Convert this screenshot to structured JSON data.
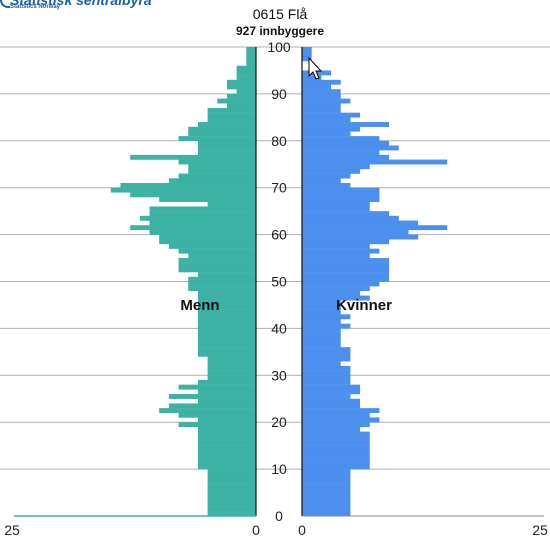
{
  "logo": {
    "name": "Statistisk sentralbyrå",
    "sub": "Statistics Norway"
  },
  "chart_data": {
    "type": "bar",
    "title": "0615 Flå",
    "subtitle": "927 innbyggere",
    "ylim": [
      0,
      100
    ],
    "yticks": [
      0,
      10,
      20,
      30,
      40,
      50,
      60,
      70,
      80,
      90,
      100
    ],
    "xlim": [
      0,
      25
    ],
    "xtick_labels": [
      "25",
      "0",
      "0",
      "25"
    ],
    "grid": true,
    "series": [
      {
        "name": "Menn",
        "color": "#3cb2a4",
        "values": [
          5,
          5,
          5,
          5,
          5,
          5,
          5,
          5,
          5,
          5,
          6,
          6,
          6,
          6,
          6,
          6,
          6,
          6,
          6,
          8,
          6,
          8,
          10,
          9,
          6,
          9,
          6,
          8,
          6,
          5,
          5,
          5,
          5,
          5,
          6,
          6,
          6,
          6,
          6,
          6,
          6,
          6,
          6,
          6,
          6,
          6,
          6,
          6,
          7,
          7,
          7,
          6,
          8,
          8,
          8,
          7,
          8,
          9,
          10,
          10,
          11,
          13,
          11,
          12,
          11,
          11,
          5,
          10,
          13,
          15,
          14,
          9,
          8,
          7,
          7,
          8,
          13,
          6,
          6,
          6,
          8,
          7,
          7,
          6,
          5,
          5,
          5,
          3,
          4,
          3,
          2,
          3,
          3,
          2,
          2,
          2,
          1,
          1,
          1,
          1,
          0
        ]
      },
      {
        "name": "Kvinner",
        "color": "#4b8fef",
        "values": [
          5,
          5,
          5,
          5,
          5,
          5,
          5,
          5,
          5,
          5,
          7,
          7,
          7,
          7,
          7,
          7,
          7,
          7,
          6,
          7,
          8,
          7,
          8,
          6,
          6,
          5,
          6,
          6,
          5,
          5,
          5,
          5,
          4,
          5,
          5,
          5,
          4,
          4,
          4,
          4,
          5,
          4,
          5,
          4,
          4,
          4,
          7,
          6,
          7,
          8,
          9,
          9,
          9,
          9,
          9,
          7,
          8,
          7,
          9,
          12,
          11,
          15,
          12,
          10,
          9,
          7,
          7,
          8,
          8,
          8,
          5,
          4,
          5,
          6,
          7,
          15,
          9,
          8,
          10,
          9,
          8,
          5,
          6,
          9,
          5,
          6,
          4,
          4,
          5,
          4,
          4,
          3,
          4,
          2,
          3,
          0,
          0,
          1,
          1,
          1,
          0
        ]
      }
    ]
  }
}
